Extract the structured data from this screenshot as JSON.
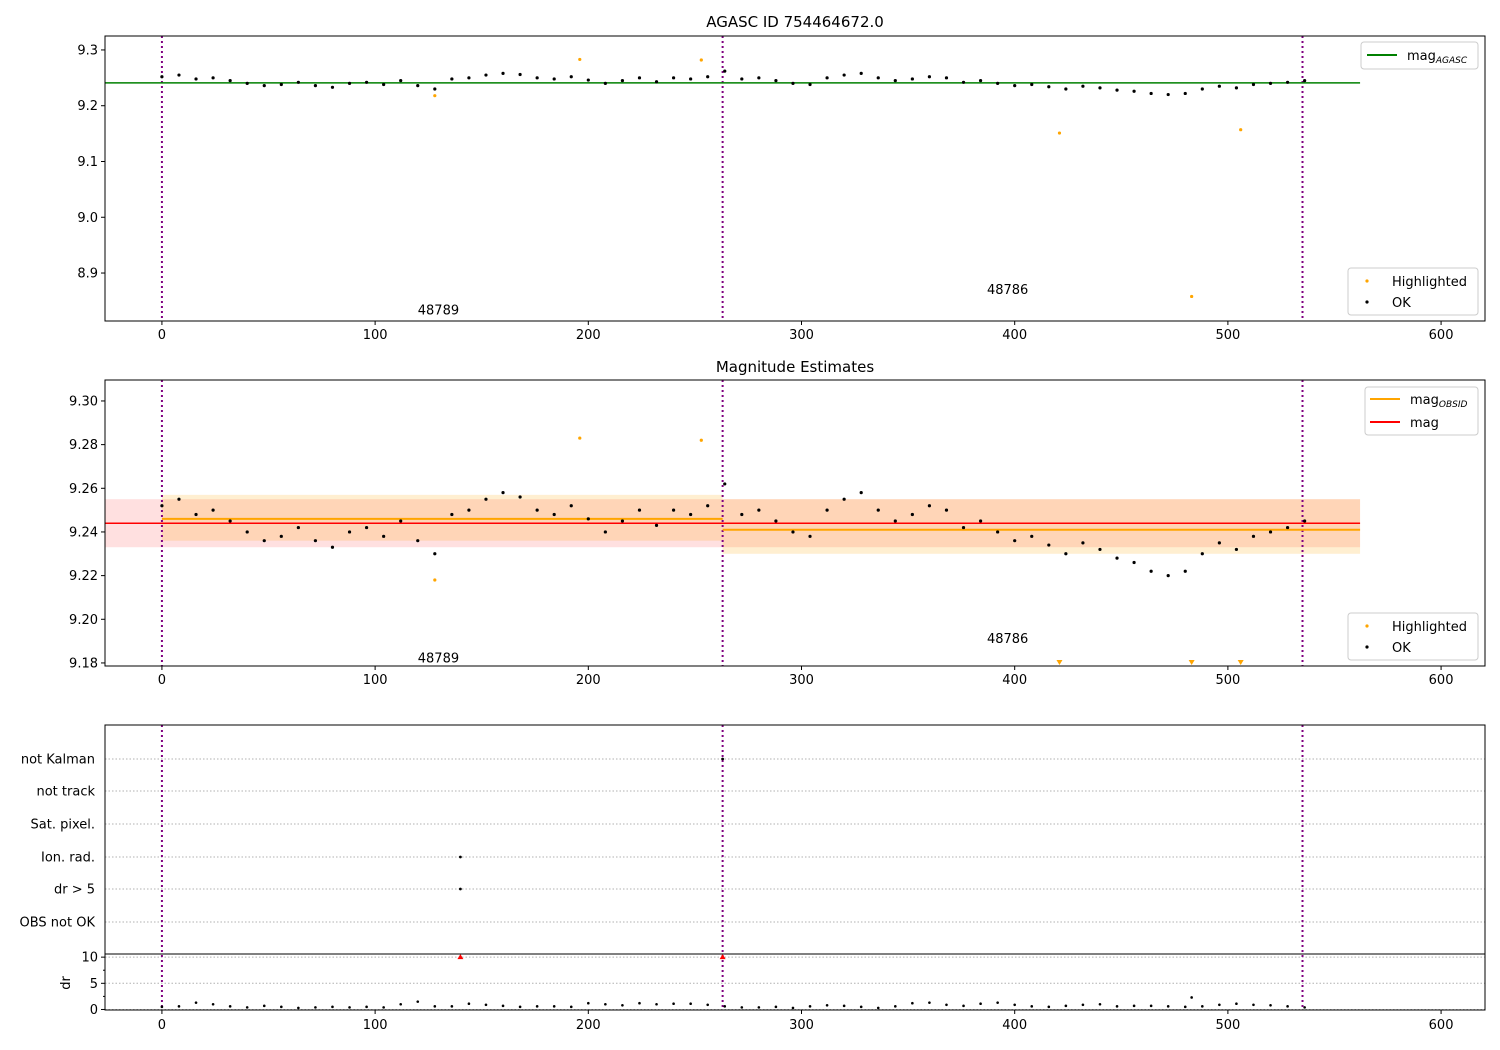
{
  "chart_data": [
    {
      "type": "scatter",
      "title": "AGASC ID 754464672.0",
      "xlim": [
        -26.7,
        620.6
      ],
      "ylim": [
        8.814,
        9.325
      ],
      "xticks": [
        0,
        100,
        200,
        300,
        400,
        500,
        600
      ],
      "yticks": [
        8.9,
        9.0,
        9.1,
        9.2,
        9.3
      ],
      "ytick_labels": [
        "8.9",
        "9.0",
        "9.1",
        "9.2",
        "9.3"
      ],
      "legend_top": {
        "mag_label": "mag",
        "mag_sub": "AGASC"
      },
      "legend_bottom": {
        "highlighted": "Highlighted",
        "ok": "OK"
      },
      "mag_agasc": 9.241,
      "annotations": [
        {
          "text": "48789",
          "x": 120,
          "y": 8.835
        },
        {
          "text": "48786",
          "x": 387,
          "y": 8.871
        }
      ]
    },
    {
      "type": "scatter",
      "title": "Magnitude Estimates",
      "xlim": [
        -26.7,
        620.6
      ],
      "ylim": [
        9.1786,
        9.3096
      ],
      "xticks": [
        0,
        100,
        200,
        300,
        400,
        500,
        600
      ],
      "yticks": [
        9.18,
        9.2,
        9.22,
        9.24,
        9.26,
        9.28,
        9.3
      ],
      "ytick_labels": [
        "9.18",
        "9.20",
        "9.22",
        "9.24",
        "9.26",
        "9.28",
        "9.30"
      ],
      "legend_top": {
        "obsid_label": "mag",
        "obsid_sub": "OBSID",
        "mag_label": "mag"
      },
      "legend_bottom": {
        "highlighted": "Highlighted",
        "ok": "OK"
      },
      "mag": {
        "value": 9.244,
        "low": 9.233,
        "high": 9.255,
        "x_range": [
          -26.7,
          562
        ]
      },
      "obsid_segments": [
        {
          "x_range": [
            0,
            263
          ],
          "mean": 9.246,
          "low": 9.236,
          "high": 9.257
        },
        {
          "x_range": [
            263,
            562
          ],
          "mean": 9.241,
          "low": 9.23,
          "high": 9.255
        }
      ],
      "annotations": [
        {
          "text": "48789",
          "x": 120,
          "y": 9.1825
        },
        {
          "text": "48786",
          "x": 387,
          "y": 9.1915
        }
      ]
    },
    {
      "type": "scatter",
      "title": "",
      "flag_labels": [
        "not Kalman",
        "not track",
        "Sat. pixel.",
        "Ion. rad.",
        "dr > 5",
        "OBS not OK"
      ],
      "flag_points": [
        {
          "flag": "not Kalman",
          "x": 263
        },
        {
          "flag": "Ion. rad.",
          "x": 140
        },
        {
          "flag": "dr > 5",
          "x": 140
        }
      ],
      "dr_ylabel": "dr",
      "dr_yticks": [
        0,
        5,
        10
      ],
      "dr_ylim": [
        -0.1,
        10.6
      ],
      "dr_clipped": [
        140,
        263
      ],
      "dr_outliers": [
        {
          "x": 483,
          "y": 2.3
        }
      ],
      "dr_values": [
        0.5,
        0.6,
        1.3,
        1.0,
        0.6,
        0.4,
        0.7,
        0.5,
        0.3,
        0.4,
        0.5,
        0.4,
        0.5,
        0.4,
        1.0,
        1.5,
        0.6,
        0.6,
        1.1,
        0.9,
        0.7,
        0.5,
        0.6,
        0.6,
        0.5,
        1.2,
        1.0,
        0.8,
        1.2,
        1.0,
        1.1,
        1.1,
        0.9,
        0.6,
        0.4,
        0.4,
        0.5,
        0.3,
        0.6,
        0.8,
        0.7,
        0.5,
        0.3,
        0.6,
        1.2,
        1.3,
        0.9,
        0.7,
        1.1,
        1.3,
        0.9,
        0.6,
        0.5,
        0.7,
        0.9,
        1.0,
        0.6,
        0.7,
        0.7,
        0.6,
        0.5,
        0.6,
        0.9,
        1.1,
        0.9,
        0.8,
        0.6,
        0.4
      ],
      "xticks": [
        0,
        100,
        200,
        300,
        400,
        500,
        600
      ]
    }
  ],
  "series": {
    "x_start": 0,
    "x_step": 8,
    "mag_ok": [
      9.252,
      9.255,
      9.248,
      9.25,
      9.245,
      9.24,
      9.236,
      9.238,
      9.242,
      9.236,
      9.233,
      9.24,
      9.242,
      9.238,
      9.245,
      9.236,
      9.23,
      9.248,
      9.25,
      9.255,
      9.258,
      9.256,
      9.25,
      9.248,
      9.252,
      9.246,
      9.24,
      9.245,
      9.25,
      9.243,
      9.25,
      9.248,
      9.252,
      9.262,
      9.248,
      9.25,
      9.245,
      9.24,
      9.238,
      9.25,
      9.255,
      9.258,
      9.25,
      9.245,
      9.248,
      9.252,
      9.25,
      9.242,
      9.245,
      9.24,
      9.236,
      9.238,
      9.234,
      9.23,
      9.235,
      9.232,
      9.228,
      9.226,
      9.222,
      9.22,
      9.222,
      9.23,
      9.235,
      9.232,
      9.238,
      9.24,
      9.242,
      9.245
    ],
    "highlighted": [
      {
        "x": 128,
        "y": 9.218
      },
      {
        "x": 196,
        "y": 9.283
      },
      {
        "x": 253,
        "y": 9.282
      },
      {
        "x": 421,
        "y": 9.151
      },
      {
        "x": 483,
        "y": 8.858
      },
      {
        "x": 506,
        "y": 9.157
      }
    ]
  },
  "obsid_boundaries": [
    0,
    263,
    535
  ],
  "colors": {
    "ok": "#000000",
    "highlighted": "#ffa500",
    "agasc": "#008000",
    "obsid": "#ffa500",
    "mag": "#ff0000",
    "vline": "#800080"
  }
}
